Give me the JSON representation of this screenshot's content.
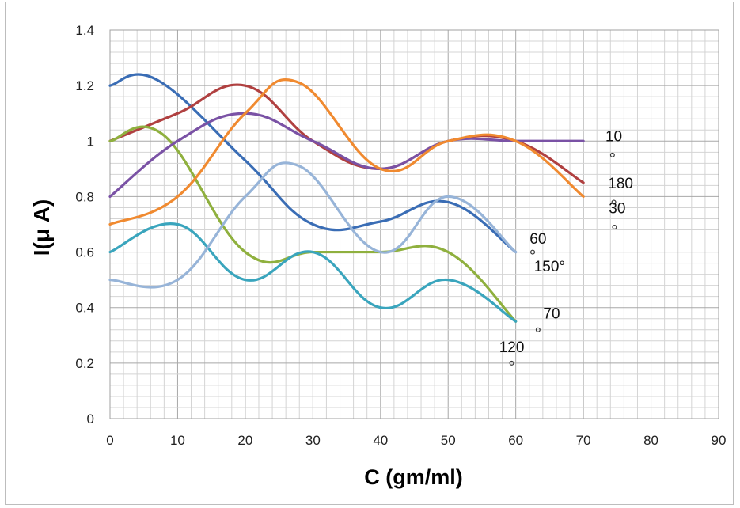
{
  "chart_data": {
    "type": "line",
    "xlabel": "C (gm/ml)",
    "ylabel": "I(μ A)",
    "xlim": [
      0,
      90
    ],
    "ylim": [
      0,
      1.4
    ],
    "x_ticks": [
      "0",
      "10",
      "20",
      "30",
      "40",
      "50",
      "60",
      "70",
      "80",
      "90"
    ],
    "y_ticks": [
      "0",
      "0.2",
      "0.4",
      "0.6",
      "0.8",
      "1",
      "1.2",
      "1.4"
    ],
    "grid": true,
    "legend": "none",
    "series": [
      {
        "color": "#3a6db5",
        "x": [
          0,
          7,
          20,
          30,
          40,
          50,
          60
        ],
        "y": [
          1.2,
          1.22,
          0.93,
          0.7,
          0.71,
          0.78,
          0.6
        ]
      },
      {
        "color": "#b04040",
        "x": [
          0,
          10,
          20,
          30,
          40,
          50,
          60,
          70
        ],
        "y": [
          1.0,
          1.1,
          1.2,
          1.0,
          0.9,
          1.0,
          1.0,
          0.85
        ]
      },
      {
        "color": "#8fb03e",
        "x": [
          0,
          8,
          20,
          30,
          40,
          50,
          60
        ],
        "y": [
          1.0,
          1.02,
          0.6,
          0.6,
          0.6,
          0.6,
          0.35
        ]
      },
      {
        "color": "#7a52a5",
        "x": [
          0,
          10,
          20,
          30,
          40,
          50,
          60,
          70
        ],
        "y": [
          0.8,
          1.0,
          1.1,
          1.0,
          0.9,
          1.0,
          1.0,
          1.0
        ]
      },
      {
        "color": "#3aa5bd",
        "x": [
          0,
          10,
          20,
          30,
          40,
          50,
          60
        ],
        "y": [
          0.6,
          0.7,
          0.5,
          0.6,
          0.4,
          0.5,
          0.35
        ]
      },
      {
        "color": "#f08a30",
        "x": [
          0,
          10,
          20,
          28,
          40,
          50,
          60,
          70
        ],
        "y": [
          0.7,
          0.8,
          1.1,
          1.21,
          0.9,
          1.0,
          1.0,
          0.8
        ]
      },
      {
        "color": "#97b4d8",
        "x": [
          0,
          10,
          20,
          28,
          40,
          50,
          60
        ],
        "y": [
          0.5,
          0.5,
          0.8,
          0.91,
          0.6,
          0.8,
          0.6
        ]
      }
    ],
    "annotations": [
      {
        "text": "10",
        "x": 74.5,
        "y": 1.02,
        "marker_x": 74.3,
        "marker_y": 0.95
      },
      {
        "text": "180",
        "x": 75.5,
        "y": 0.85,
        "marker_x": 74.5,
        "marker_y": 0.78
      },
      {
        "text": "30",
        "x": 75.0,
        "y": 0.76,
        "marker_x": 74.6,
        "marker_y": 0.69
      },
      {
        "text": "60",
        "x": 63.3,
        "y": 0.65,
        "marker_x": 62.5,
        "marker_y": 0.6
      },
      {
        "text": "150°",
        "x": 65.0,
        "y": 0.55
      },
      {
        "text": "70",
        "x": 65.3,
        "y": 0.38,
        "marker_x": 63.3,
        "marker_y": 0.32
      },
      {
        "text": "120",
        "x": 59.4,
        "y": 0.26,
        "marker_x": 59.4,
        "marker_y": 0.2
      }
    ]
  }
}
